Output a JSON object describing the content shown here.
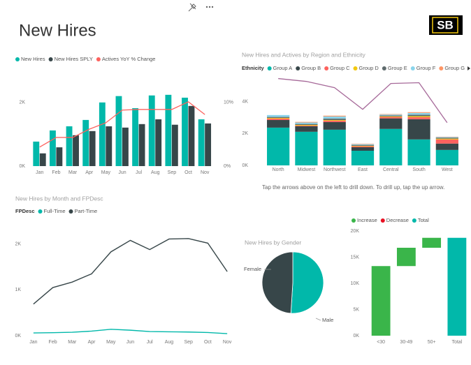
{
  "header": {
    "title": "New Hires",
    "logo": "SB"
  },
  "chart_data": [
    {
      "type": "combo",
      "categories": [
        "Jan",
        "Feb",
        "Mar",
        "Apr",
        "May",
        "Jun",
        "Jul",
        "Aug",
        "Sep",
        "Oct",
        "Nov"
      ],
      "series": [
        {
          "name": "New Hires",
          "color": "#01b8aa",
          "type": "bar",
          "values": [
            770,
            1120,
            1250,
            1450,
            2000,
            2200,
            1820,
            2220,
            2240,
            2150,
            1470
          ]
        },
        {
          "name": "New Hires SPLY",
          "color": "#374649",
          "type": "bar",
          "values": [
            400,
            590,
            970,
            1100,
            1250,
            1210,
            1320,
            1470,
            1300,
            1890,
            1340
          ]
        },
        {
          "name": "Actives YoY % Change",
          "color": "#fd625e",
          "type": "line",
          "axis": "y2",
          "values": [
            3.0,
            4.5,
            4.5,
            5.8,
            6.8,
            8.8,
            8.9,
            8.9,
            8.9,
            10.1,
            8.1
          ]
        }
      ],
      "ylim": [
        0,
        2500
      ],
      "yticks": [
        {
          "value": 0,
          "label": "0K"
        },
        {
          "value": 2000,
          "label": "2K"
        }
      ],
      "y2lim": [
        0,
        12.5
      ],
      "y2ticks": [
        {
          "value": 0,
          "label": "0%"
        },
        {
          "value": 10,
          "label": "10%"
        }
      ]
    },
    {
      "type": "stacked_bar",
      "title": "New Hires and Actives by Region and Ethnicity",
      "legend_title": "Ethnicity",
      "categories": [
        "North",
        "Midwest",
        "Northwest",
        "East",
        "Central",
        "South",
        "West"
      ],
      "series": [
        {
          "name": "Group A",
          "color": "#01b8aa",
          "type": "bar",
          "values": [
            2370,
            2110,
            2240,
            920,
            2290,
            1630,
            970
          ]
        },
        {
          "name": "Group B",
          "color": "#374649",
          "type": "bar",
          "values": [
            480,
            350,
            480,
            220,
            660,
            1270,
            400
          ]
        },
        {
          "name": "Group C",
          "color": "#fd625e",
          "type": "bar",
          "values": [
            90,
            40,
            90,
            60,
            90,
            130,
            260
          ]
        },
        {
          "name": "Group D",
          "color": "#f2c80f",
          "type": "bar",
          "values": [
            40,
            40,
            40,
            30,
            40,
            60,
            50
          ]
        },
        {
          "name": "Group E",
          "color": "#5f6b6d",
          "type": "bar",
          "values": [
            60,
            60,
            90,
            40,
            50,
            90,
            60
          ]
        },
        {
          "name": "Group F",
          "color": "#8ad4eb",
          "type": "bar",
          "values": [
            120,
            90,
            130,
            60,
            60,
            110,
            40
          ]
        },
        {
          "name": "Group G",
          "color": "#fe9666",
          "type": "bar",
          "values": [
            0,
            40,
            50,
            30,
            30,
            50,
            20
          ]
        },
        {
          "color": "#a66999",
          "type": "line",
          "values": [
            5450,
            5270,
            4880,
            3520,
            5140,
            5190,
            2680
          ]
        }
      ],
      "ylim": [
        0,
        6000
      ],
      "yticks": [
        {
          "value": 0,
          "label": "0K"
        },
        {
          "value": 2000,
          "label": "2K"
        },
        {
          "value": 4000,
          "label": "4K"
        }
      ],
      "caption": "Tap the arrows above on the left to drill down. To drill up, tap the up arrow."
    },
    {
      "type": "line",
      "title": "New Hires by Month and FPDesc",
      "legend_title": "FPDesc",
      "categories": [
        "Jan",
        "Feb",
        "Mar",
        "Apr",
        "May",
        "Jun",
        "Jul",
        "Aug",
        "Sep",
        "Oct",
        "Nov"
      ],
      "series": [
        {
          "name": "Full-Time",
          "color": "#01b8aa",
          "values": [
            60,
            65,
            75,
            100,
            140,
            120,
            90,
            85,
            80,
            70,
            45
          ]
        },
        {
          "name": "Part-Time",
          "color": "#374649",
          "values": [
            690,
            1050,
            1170,
            1350,
            1830,
            2080,
            1880,
            2110,
            2120,
            2020,
            1400
          ]
        }
      ],
      "ylim": [
        0,
        2300
      ],
      "yticks": [
        {
          "value": 0,
          "label": "0K"
        },
        {
          "value": 1000,
          "label": "1K"
        },
        {
          "value": 2000,
          "label": "2K"
        }
      ]
    },
    {
      "type": "pie",
      "title": "New Hires by Gender",
      "categories": [
        "Male",
        "Female"
      ],
      "values": [
        51,
        49
      ],
      "colors": [
        "#01b8aa",
        "#374649"
      ]
    },
    {
      "type": "waterfall",
      "legend": [
        {
          "name": "Increase",
          "color": "#3ab54a"
        },
        {
          "name": "Decrease",
          "color": "#e81123"
        },
        {
          "name": "Total",
          "color": "#01b8aa"
        }
      ],
      "categories": [
        "<30",
        "30-49",
        "50+",
        "Total"
      ],
      "values": [
        13300,
        3500,
        1900,
        18700
      ],
      "is_total": [
        false,
        false,
        false,
        true
      ],
      "ylim": [
        0,
        20000
      ],
      "yticks": [
        {
          "value": 0,
          "label": "0K"
        },
        {
          "value": 5000,
          "label": "5K"
        },
        {
          "value": 10000,
          "label": "10K"
        },
        {
          "value": 15000,
          "label": "15K"
        },
        {
          "value": 20000,
          "label": "20K"
        }
      ]
    }
  ]
}
